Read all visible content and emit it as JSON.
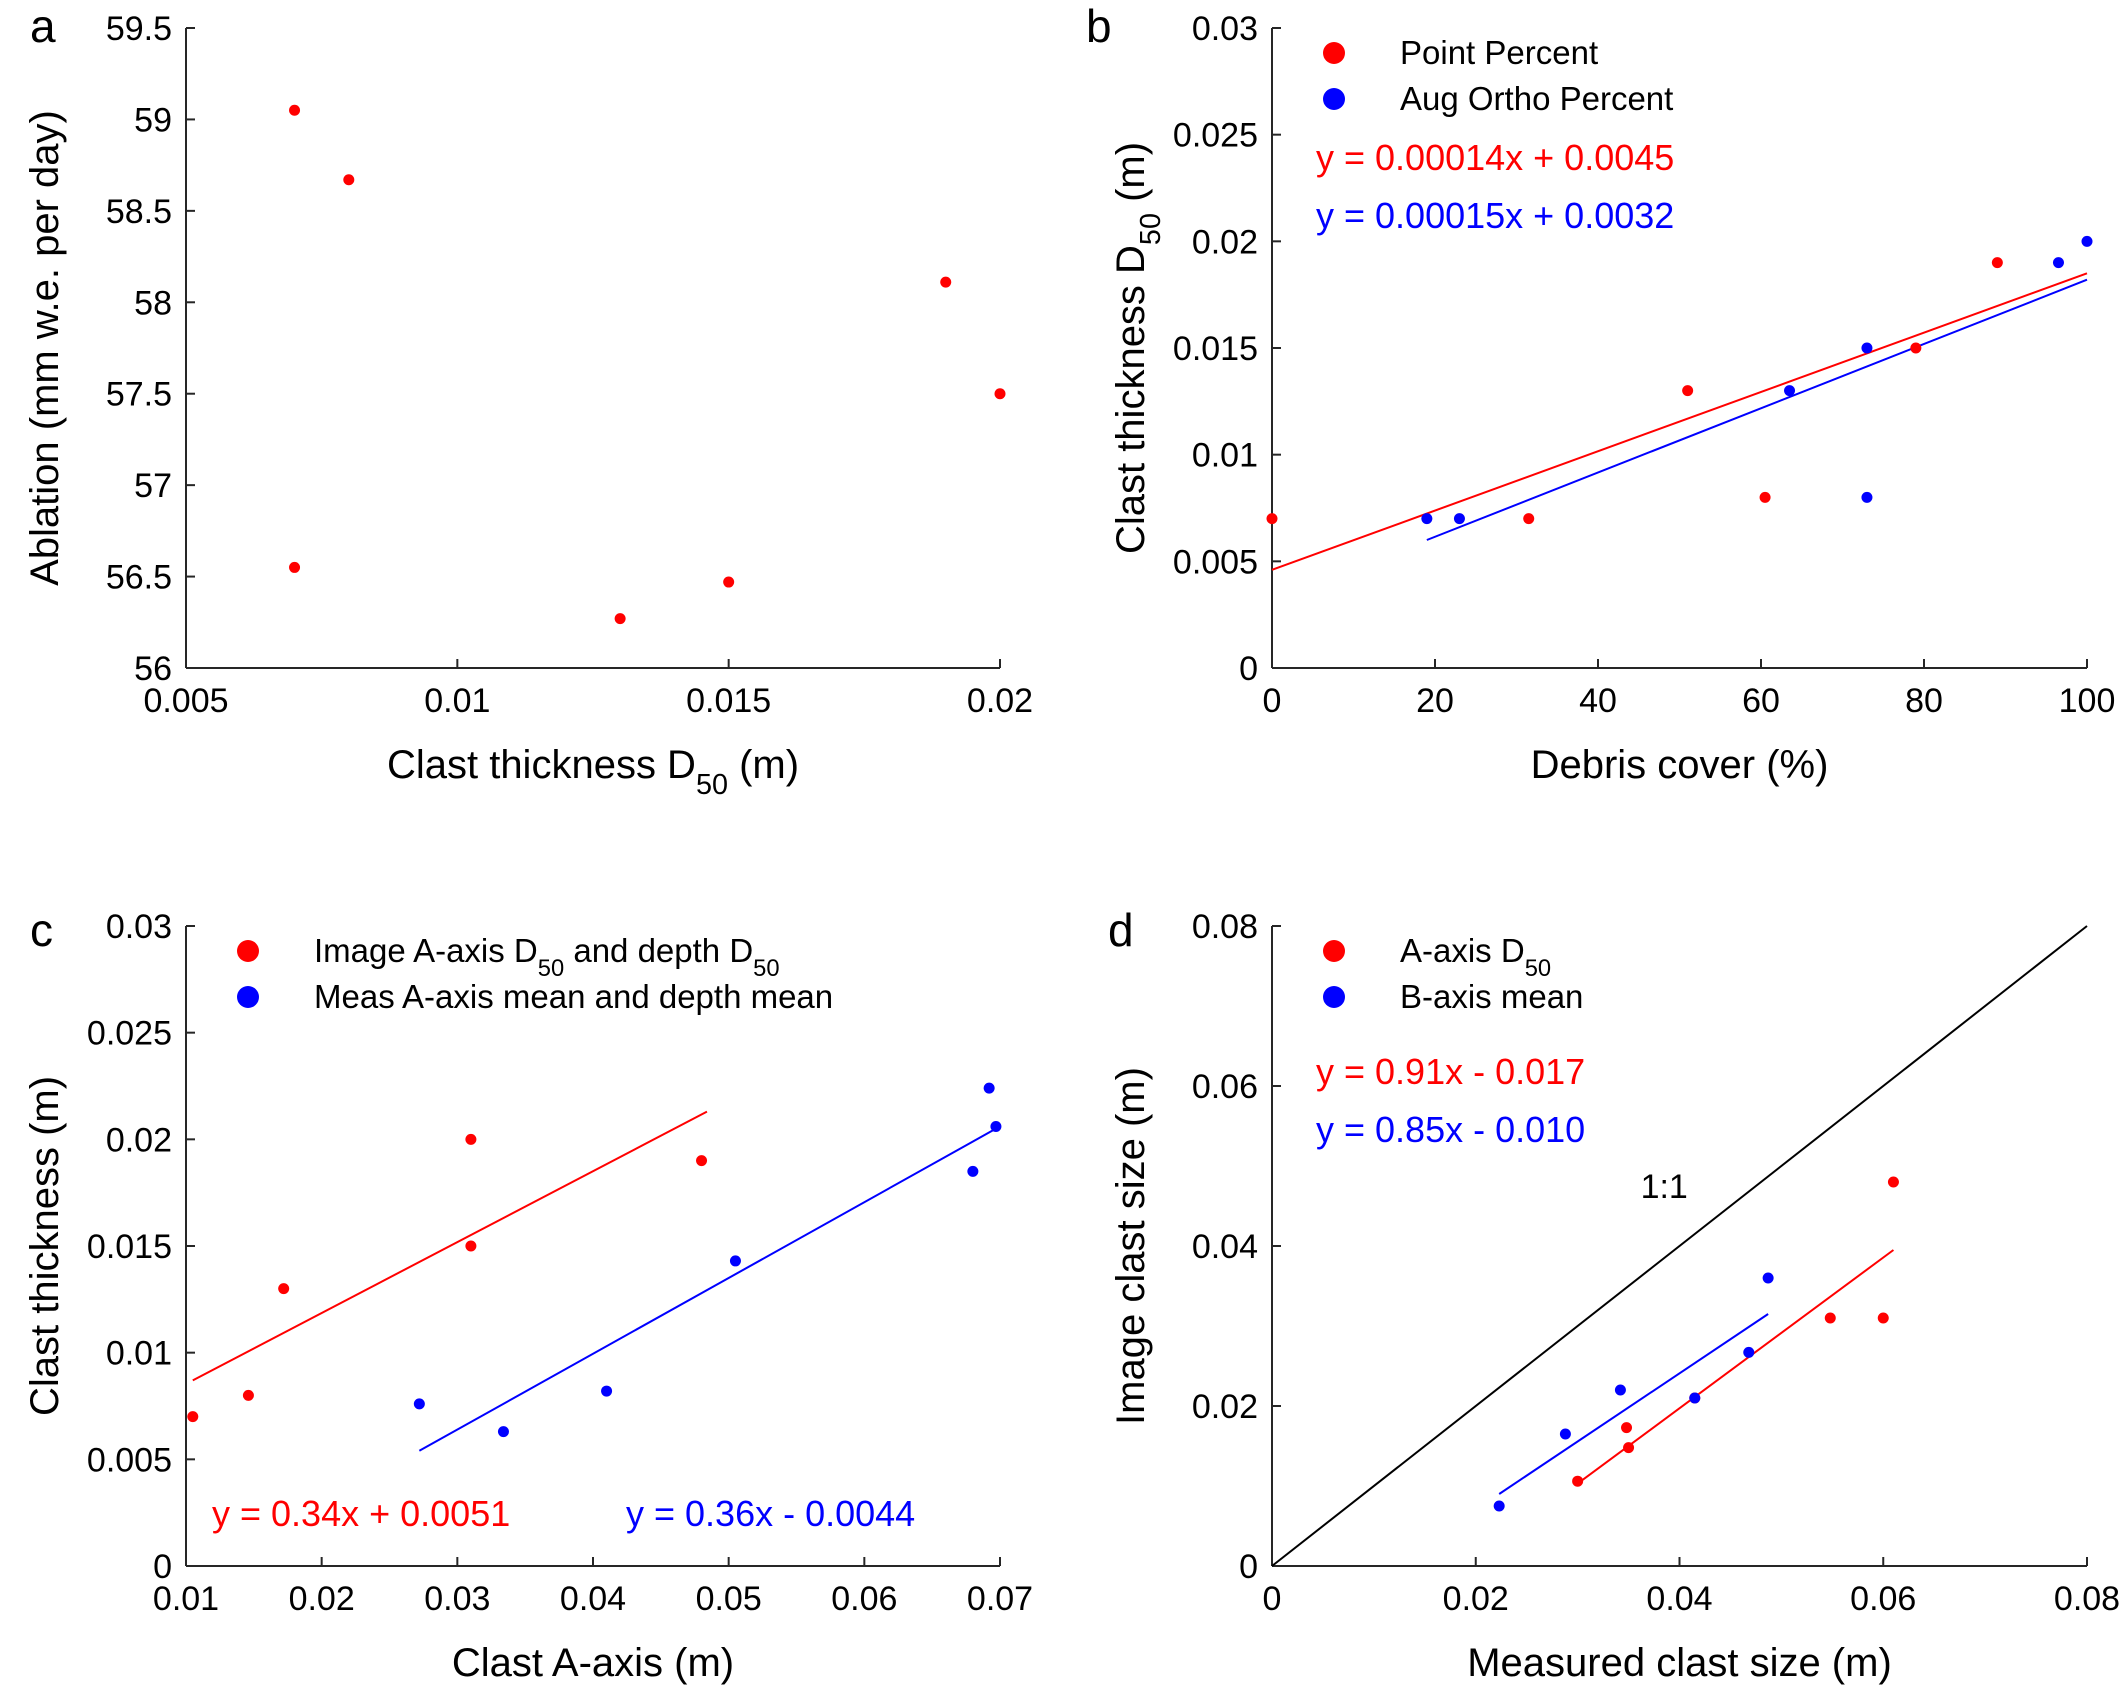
{
  "figure": {
    "colors": {
      "red": "#ff0000",
      "blue": "#0000ff",
      "black": "#000000"
    }
  },
  "chart_data": [
    {
      "panel": "a",
      "type": "scatter",
      "xlim": [
        0.005,
        0.02
      ],
      "ylim": [
        56,
        59.5
      ],
      "xticks": [
        "0.005",
        "0.01",
        "0.015",
        "0.02"
      ],
      "yticks": [
        "56",
        "56.5",
        "57",
        "57.5",
        "58",
        "58.5",
        "59",
        "59.5"
      ],
      "xlabel": "Clast thickness D",
      "xlabel_sub": "50",
      "xlabel_tail": " (m)",
      "ylabel": "Ablation (mm w.e. per day)",
      "legend": [],
      "series": [
        {
          "color": "#ff0000",
          "points": [
            [
              0.007,
              59.05
            ],
            [
              0.008,
              58.67
            ],
            [
              0.007,
              56.55
            ],
            [
              0.013,
              56.27
            ],
            [
              0.015,
              56.47
            ],
            [
              0.019,
              58.11
            ],
            [
              0.02,
              57.5
            ]
          ]
        }
      ],
      "fits": [],
      "equations": [],
      "annotations": [],
      "grid": false
    },
    {
      "panel": "b",
      "type": "scatter",
      "xlim": [
        0,
        100
      ],
      "ylim": [
        0,
        0.03
      ],
      "xticks": [
        "0",
        "20",
        "40",
        "60",
        "80",
        "100"
      ],
      "yticks": [
        "0",
        "0.005",
        "0.01",
        "0.015",
        "0.02",
        "0.025",
        "0.03"
      ],
      "xlabel": "Debris cover (%)",
      "ylabel": "Clast thickness D",
      "ylabel_sub": "50",
      "ylabel_tail": " (m)",
      "legend": [
        {
          "label": "Point Percent",
          "color": "#ff0000"
        },
        {
          "label": "Aug Ortho Percent",
          "color": "#0000ff"
        }
      ],
      "series": [
        {
          "name": "Point Percent",
          "color": "#ff0000",
          "points": [
            [
              0,
              0.007
            ],
            [
              31.5,
              0.007
            ],
            [
              51,
              0.013
            ],
            [
              60.5,
              0.008
            ],
            [
              79,
              0.015
            ],
            [
              89,
              0.019
            ]
          ]
        },
        {
          "name": "Aug Ortho Percent",
          "color": "#0000ff",
          "points": [
            [
              19,
              0.007
            ],
            [
              23,
              0.007
            ],
            [
              63.5,
              0.013
            ],
            [
              73,
              0.015
            ],
            [
              73,
              0.008
            ],
            [
              96.5,
              0.019
            ],
            [
              100,
              0.02
            ]
          ]
        }
      ],
      "fits": [
        {
          "color": "#ff0000",
          "x": [
            0,
            100
          ],
          "y": [
            0.0046,
            0.0185
          ]
        },
        {
          "color": "#0000ff",
          "x": [
            19,
            100
          ],
          "y": [
            0.006,
            0.0182
          ]
        }
      ],
      "equations": [
        {
          "text": "y = 0.00014x + 0.0045",
          "color": "#ff0000",
          "pos": "upper-left-1"
        },
        {
          "text": "y = 0.00015x + 0.0032",
          "color": "#0000ff",
          "pos": "upper-left-2"
        }
      ],
      "annotations": [],
      "grid": false
    },
    {
      "panel": "c",
      "type": "scatter",
      "xlim": [
        0.01,
        0.07
      ],
      "ylim": [
        0,
        0.03
      ],
      "xticks": [
        "0.01",
        "0.02",
        "0.03",
        "0.04",
        "0.05",
        "0.06",
        "0.07"
      ],
      "yticks": [
        "0",
        "0.005",
        "0.01",
        "0.015",
        "0.02",
        "0.025",
        "0.03"
      ],
      "xlabel": "Clast A-axis (m)",
      "ylabel": "Clast thickness (m)",
      "legend": [
        {
          "label": "Image A-axis D",
          "sub": "50",
          "label_tail": " and depth D",
          "sub2": "50",
          "color": "#ff0000"
        },
        {
          "label": "Meas A-axis mean and depth mean",
          "color": "#0000ff"
        }
      ],
      "series": [
        {
          "name": "Image A-axis D50 and depth D50",
          "color": "#ff0000",
          "points": [
            [
              0.0105,
              0.007
            ],
            [
              0.0146,
              0.008
            ],
            [
              0.0172,
              0.013
            ],
            [
              0.031,
              0.02
            ],
            [
              0.031,
              0.015
            ],
            [
              0.048,
              0.019
            ]
          ]
        },
        {
          "name": "Meas A-axis mean and depth mean",
          "color": "#0000ff",
          "points": [
            [
              0.0272,
              0.0076
            ],
            [
              0.0334,
              0.0063
            ],
            [
              0.041,
              0.0082
            ],
            [
              0.0505,
              0.0143
            ],
            [
              0.068,
              0.0185
            ],
            [
              0.0692,
              0.0224
            ],
            [
              0.0697,
              0.0206
            ]
          ]
        }
      ],
      "fits": [
        {
          "color": "#ff0000",
          "x": [
            0.0105,
            0.0484
          ],
          "y": [
            0.0087,
            0.0213
          ]
        },
        {
          "color": "#0000ff",
          "x": [
            0.0272,
            0.0697
          ],
          "y": [
            0.0054,
            0.0205
          ]
        }
      ],
      "equations": [
        {
          "text": "y = 0.34x + 0.0051",
          "color": "#ff0000",
          "pos": "bottom-left"
        },
        {
          "text": "y = 0.36x - 0.0044",
          "color": "#0000ff",
          "pos": "bottom-right"
        }
      ],
      "annotations": [],
      "grid": false
    },
    {
      "panel": "d",
      "type": "scatter",
      "xlim": [
        0,
        0.08
      ],
      "ylim": [
        0,
        0.08
      ],
      "xticks": [
        "0",
        "0.02",
        "0.04",
        "0.06",
        "0.08"
      ],
      "yticks": [
        "0",
        "0.02",
        "0.04",
        "0.06",
        "0.08"
      ],
      "xlabel": "Measured clast size (m)",
      "ylabel": "Image clast size (m)",
      "legend": [
        {
          "label": "A-axis D",
          "sub": "50",
          "color": "#ff0000"
        },
        {
          "label": "B-axis mean",
          "color": "#0000ff"
        }
      ],
      "series": [
        {
          "name": "A-axis D50",
          "color": "#ff0000",
          "points": [
            [
              0.03,
              0.0106
            ],
            [
              0.035,
              0.0148
            ],
            [
              0.0348,
              0.0173
            ],
            [
              0.0415,
              0.021
            ],
            [
              0.0548,
              0.031
            ],
            [
              0.06,
              0.031
            ],
            [
              0.061,
              0.048
            ]
          ]
        },
        {
          "name": "B-axis mean",
          "color": "#0000ff",
          "points": [
            [
              0.0223,
              0.0075
            ],
            [
              0.0288,
              0.0165
            ],
            [
              0.0342,
              0.022
            ],
            [
              0.0415,
              0.021
            ],
            [
              0.0468,
              0.0267
            ],
            [
              0.0487,
              0.036
            ]
          ]
        }
      ],
      "fits": [
        {
          "color": "#000000",
          "x": [
            0,
            0.08
          ],
          "y": [
            0,
            0.08
          ]
        },
        {
          "color": "#ff0000",
          "x": [
            0.03,
            0.061
          ],
          "y": [
            0.0103,
            0.0395
          ]
        },
        {
          "color": "#0000ff",
          "x": [
            0.0223,
            0.0487
          ],
          "y": [
            0.009,
            0.0315
          ]
        }
      ],
      "equations": [
        {
          "text": "y = 0.91x - 0.017",
          "color": "#ff0000",
          "pos": "upper-left-1"
        },
        {
          "text": "y = 0.85x - 0.010",
          "color": "#0000ff",
          "pos": "upper-left-2"
        }
      ],
      "annotations": [
        {
          "text": "1:1",
          "color": "#000000",
          "pos": "above-identity-line"
        }
      ],
      "grid": false
    }
  ]
}
